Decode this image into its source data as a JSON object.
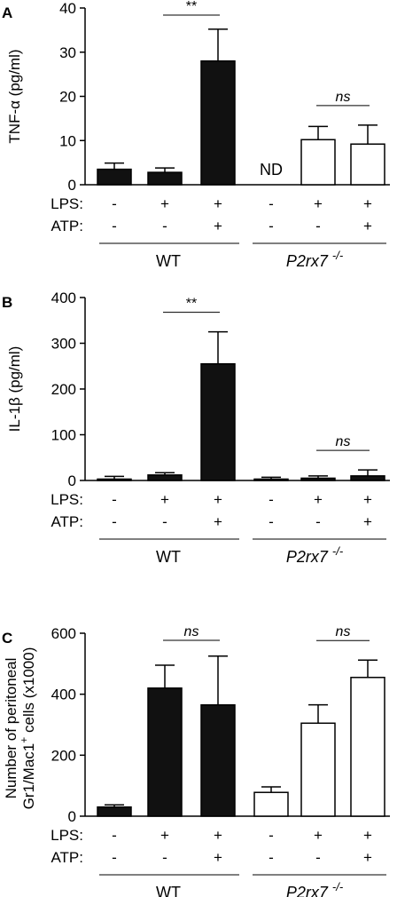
{
  "chart_data": [
    {
      "type": "bar",
      "panel": "A",
      "ylabel": "TNF-α (pg/ml)",
      "ylim": [
        0,
        40
      ],
      "yticks": [
        "0",
        "10",
        "20",
        "30",
        "40"
      ],
      "categories": [
        "WT -/-",
        "WT LPS",
        "WT LPS+ATP",
        "P2rx7-/- -/-",
        "P2rx7-/- LPS",
        "P2rx7-/- LPS+ATP"
      ],
      "values": [
        3.5,
        2.8,
        28,
        null,
        10.2,
        9.2
      ],
      "errors": [
        1.4,
        1.0,
        7.2,
        null,
        3.0,
        4.3
      ],
      "fills": [
        "black",
        "black",
        "black",
        "white",
        "white",
        "white"
      ],
      "labels": [
        "",
        "",
        "",
        "ND",
        "",
        ""
      ],
      "lps": [
        "-",
        "+",
        "+",
        "-",
        "+",
        "+"
      ],
      "atp": [
        "-",
        "-",
        "+",
        "-",
        "-",
        "+"
      ],
      "groups": [
        {
          "label": "WT",
          "italic": false
        },
        {
          "label": "P2rx7",
          "sup": "-/-",
          "italic": true
        }
      ],
      "significance": [
        {
          "from": 1,
          "to": 2,
          "text": "**",
          "italic": false
        },
        {
          "from": 4,
          "to": 5,
          "text": "ns",
          "italic": true
        }
      ]
    },
    {
      "type": "bar",
      "panel": "B",
      "ylabel": "IL-1β (pg/ml)",
      "ylim": [
        0,
        400
      ],
      "yticks": [
        "0",
        "100",
        "200",
        "300",
        "400"
      ],
      "categories": [
        "WT -/-",
        "WT LPS",
        "WT LPS+ATP",
        "P2rx7-/- -/-",
        "P2rx7-/- LPS",
        "P2rx7-/- LPS+ATP"
      ],
      "values": [
        3,
        12,
        255,
        3,
        5,
        10
      ],
      "errors": [
        6,
        5,
        70,
        4,
        5,
        13
      ],
      "fills": [
        "black",
        "black",
        "black",
        "black",
        "black",
        "black"
      ],
      "labels": [
        "",
        "",
        "",
        "",
        "",
        ""
      ],
      "lps": [
        "-",
        "+",
        "+",
        "-",
        "+",
        "+"
      ],
      "atp": [
        "-",
        "-",
        "+",
        "-",
        "-",
        "+"
      ],
      "groups": [
        {
          "label": "WT",
          "italic": false
        },
        {
          "label": "P2rx7",
          "sup": "-/-",
          "italic": true
        }
      ],
      "significance": [
        {
          "from": 1,
          "to": 2,
          "text": "**",
          "italic": false
        },
        {
          "from": 4,
          "to": 5,
          "text": "ns",
          "italic": true
        }
      ]
    },
    {
      "type": "bar",
      "panel": "C",
      "ylabel_line1": "Number of peritoneal",
      "ylabel_line2_pre": "Gr1/Mac1",
      "ylabel_line2_sup": "+",
      "ylabel_line2_post": " cells (x1000)",
      "ylim": [
        0,
        600
      ],
      "yticks": [
        "0",
        "200",
        "400",
        "600"
      ],
      "categories": [
        "WT -/-",
        "WT LPS",
        "WT LPS+ATP",
        "P2rx7-/- -/-",
        "P2rx7-/- LPS",
        "P2rx7-/- LPS+ATP"
      ],
      "values": [
        30,
        420,
        365,
        78,
        305,
        455
      ],
      "errors": [
        7,
        75,
        160,
        18,
        60,
        57
      ],
      "fills": [
        "black",
        "black",
        "black",
        "white",
        "white",
        "white"
      ],
      "labels": [
        "",
        "",
        "",
        "",
        "",
        ""
      ],
      "lps": [
        "-",
        "+",
        "+",
        "-",
        "+",
        "+"
      ],
      "atp": [
        "-",
        "-",
        "+",
        "-",
        "-",
        "+"
      ],
      "groups": [
        {
          "label": "WT",
          "italic": false
        },
        {
          "label": "P2rx7",
          "sup": "-/-",
          "italic": true
        }
      ],
      "significance": [
        {
          "from": 1,
          "to": 2,
          "text": "ns",
          "italic": true
        },
        {
          "from": 4,
          "to": 5,
          "text": "ns",
          "italic": true
        }
      ]
    }
  ],
  "conditions": {
    "lps_label": "LPS:",
    "atp_label": "ATP:"
  }
}
